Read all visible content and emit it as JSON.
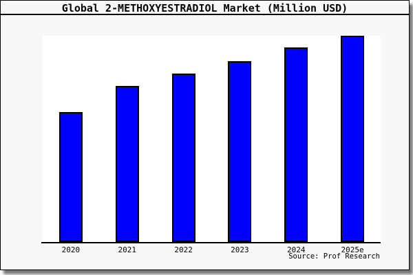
{
  "window": {
    "bg_color": "#f8f8f8",
    "border_color": "#000000",
    "shadow_color": "#777777"
  },
  "chart_data": {
    "type": "bar",
    "title": "Global 2-METHOXYESTRADIOL Market (Million USD)",
    "categories": [
      "2020",
      "2021",
      "2022",
      "2023",
      "2024",
      "2025e"
    ],
    "values": [
      63,
      75.5,
      81.7,
      87.8,
      94.2,
      100
    ],
    "values_note": "relative bar heights in % of tallest bar; no numeric y-axis shown in image",
    "xlabel": "",
    "ylabel": "",
    "ylim": [
      0,
      100
    ],
    "grid": false,
    "legend": false,
    "bar_color": "#0000ff",
    "bar_border_color": "#000000",
    "plot_bg_color": "#ffffff"
  },
  "footer": {
    "source_label": "Source: Prof Research"
  }
}
